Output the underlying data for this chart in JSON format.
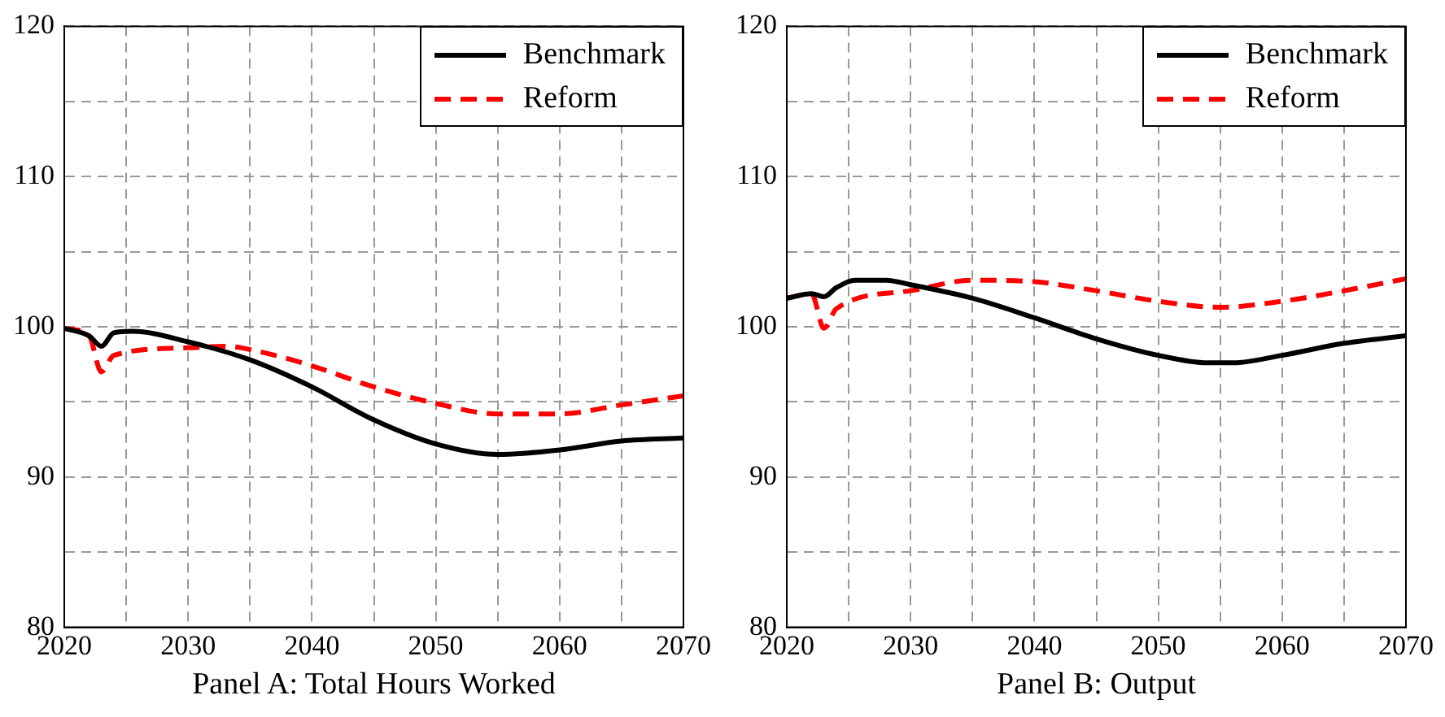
{
  "chart_data": [
    {
      "type": "line",
      "xlabel": "Panel A: Total Hours Worked",
      "xlim": [
        2020,
        2070
      ],
      "ylim": [
        80,
        120
      ],
      "xticks": [
        2020,
        {
          "value": 2025,
          "label": null
        },
        2030,
        {
          "value": 2035,
          "label": null
        },
        2040,
        {
          "value": 2045,
          "label": null
        },
        2050,
        {
          "value": 2055,
          "label": null
        },
        2060,
        {
          "value": 2065,
          "label": null
        },
        2070
      ],
      "yticks": [
        80,
        {
          "value": 85,
          "label": null
        },
        90,
        {
          "value": 95,
          "label": null
        },
        100,
        {
          "value": 105,
          "label": null
        },
        110,
        {
          "value": 115,
          "label": null
        },
        120
      ],
      "grid": true,
      "legend": "top right",
      "marker": "none",
      "series": [
        {
          "name": "Benchmark",
          "color": "#000000",
          "line_style": "solid",
          "x": [
            2020,
            2022,
            2023,
            2024,
            2025.5,
            2030,
            2035,
            2040,
            2045,
            2050,
            2055,
            2060,
            2065,
            2070
          ],
          "values": [
            99.9,
            99.4,
            98.7,
            99.6,
            99.7,
            99.0,
            97.8,
            96.0,
            93.8,
            92.2,
            91.5,
            91.8,
            92.4,
            92.6
          ]
        },
        {
          "name": "Reform",
          "color": "#ff0000",
          "line_style": "dashed",
          "x": [
            2020,
            2022,
            2023,
            2024,
            2030,
            2033,
            2036,
            2040,
            2045,
            2050,
            2055,
            2060,
            2065,
            2070
          ],
          "values": [
            99.9,
            99.4,
            97.0,
            98.1,
            98.6,
            98.7,
            98.3,
            97.4,
            96.0,
            94.9,
            94.2,
            94.2,
            94.8,
            95.4
          ]
        }
      ]
    },
    {
      "type": "line",
      "xlabel": "Panel B: Output",
      "xlim": [
        2020,
        2070
      ],
      "ylim": [
        80,
        120
      ],
      "xticks": [
        2020,
        {
          "value": 2025,
          "label": null
        },
        2030,
        {
          "value": 2035,
          "label": null
        },
        2040,
        {
          "value": 2045,
          "label": null
        },
        2050,
        {
          "value": 2055,
          "label": null
        },
        2060,
        {
          "value": 2065,
          "label": null
        },
        2070
      ],
      "yticks": [
        80,
        {
          "value": 85,
          "label": null
        },
        90,
        {
          "value": 95,
          "label": null
        },
        100,
        {
          "value": 105,
          "label": null
        },
        110,
        {
          "value": 115,
          "label": null
        },
        120
      ],
      "grid": true,
      "legend": "top right",
      "marker": "none",
      "series": [
        {
          "name": "Benchmark",
          "color": "#000000",
          "line_style": "solid",
          "x": [
            2020,
            2022,
            2023,
            2024,
            2025.5,
            2028,
            2030,
            2035,
            2040,
            2045,
            2050,
            2054,
            2056,
            2060,
            2065,
            2070
          ],
          "values": [
            101.9,
            102.2,
            102.0,
            102.6,
            103.1,
            103.1,
            102.8,
            101.9,
            100.6,
            99.2,
            98.1,
            97.6,
            97.6,
            98.1,
            98.9,
            99.4
          ]
        },
        {
          "name": "Reform",
          "color": "#ff0000",
          "line_style": "dashed",
          "x": [
            2020,
            2022,
            2023,
            2024,
            2030,
            2035,
            2040,
            2045,
            2050,
            2055,
            2060,
            2065,
            2070
          ],
          "values": [
            101.9,
            102.2,
            99.9,
            101.2,
            102.4,
            103.1,
            103.0,
            102.4,
            101.7,
            101.3,
            101.7,
            102.4,
            103.2
          ]
        }
      ]
    }
  ]
}
